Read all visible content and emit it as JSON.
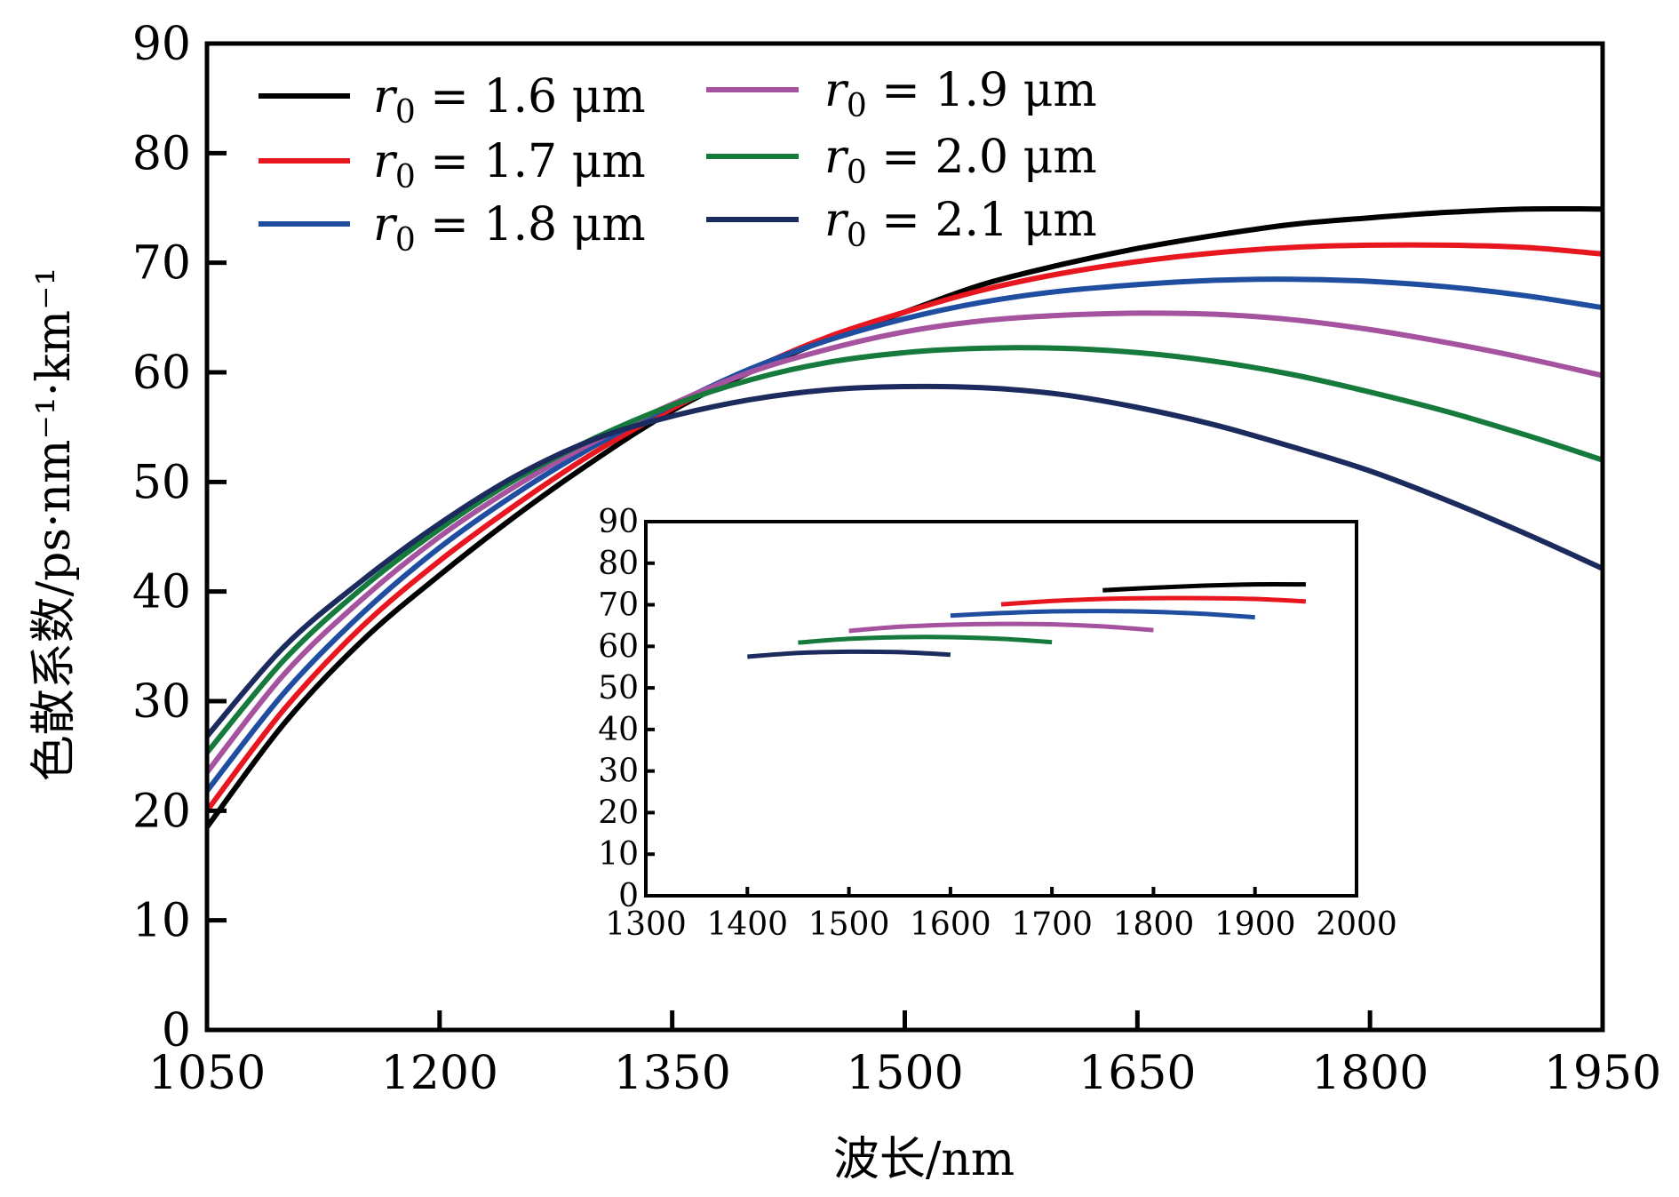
{
  "chart_data": [
    {
      "type": "line",
      "title": "",
      "xlabel": "波长/nm",
      "ylabel": "色散系数/ps·nm⁻¹·km⁻¹",
      "xlim": [
        1050,
        1950
      ],
      "ylim": [
        0,
        90
      ],
      "xticks": [
        "1050",
        "1200",
        "1350",
        "1500",
        "1650",
        "1800",
        "1950"
      ],
      "yticks": [
        "0",
        "10",
        "20",
        "30",
        "40",
        "50",
        "60",
        "70",
        "80",
        "90"
      ],
      "grid": false,
      "legend_position": "top-left",
      "x": [
        1050,
        1100,
        1150,
        1200,
        1250,
        1300,
        1350,
        1400,
        1450,
        1500,
        1550,
        1600,
        1650,
        1700,
        1750,
        1800,
        1850,
        1900,
        1950
      ],
      "series": [
        {
          "name": "r0 = 1.6 μm",
          "legend_prefix": "r",
          "legend_sub": "0",
          "legend_suffix": " = 1.6 μm",
          "color": "#000000",
          "values": [
            18.5,
            28.0,
            35.5,
            41.5,
            47.0,
            52.0,
            56.5,
            60.0,
            63.0,
            65.5,
            68.0,
            69.8,
            71.3,
            72.5,
            73.5,
            74.1,
            74.6,
            74.9,
            74.9
          ]
        },
        {
          "name": "r0 = 1.7 μm",
          "legend_prefix": "r",
          "legend_sub": "0",
          "legend_suffix": " = 1.7 μm",
          "color": "#e8161e",
          "values": [
            20.0,
            29.3,
            36.8,
            42.8,
            48.0,
            52.7,
            56.7,
            60.2,
            63.2,
            65.5,
            67.5,
            69.0,
            70.1,
            70.9,
            71.4,
            71.6,
            71.6,
            71.4,
            70.8
          ]
        },
        {
          "name": "r0 = 1.8 μm",
          "legend_prefix": "r",
          "legend_sub": "0",
          "legend_suffix": " = 1.8 μm",
          "color": "#1f4ea1",
          "values": [
            21.8,
            30.8,
            38.0,
            44.0,
            49.0,
            53.3,
            57.0,
            60.3,
            62.9,
            64.9,
            66.4,
            67.4,
            68.0,
            68.4,
            68.5,
            68.3,
            67.8,
            67.0,
            65.9
          ]
        },
        {
          "name": "r0 = 1.9 μm",
          "legend_prefix": "r",
          "legend_sub": "0",
          "legend_suffix": " = 1.9 μm",
          "color": "#a6539f",
          "values": [
            23.5,
            32.5,
            39.3,
            45.0,
            49.7,
            53.7,
            57.1,
            60.0,
            62.1,
            63.7,
            64.7,
            65.2,
            65.4,
            65.3,
            64.8,
            63.9,
            62.7,
            61.3,
            59.7
          ]
        },
        {
          "name": "r0 = 2.0 μm",
          "legend_prefix": "r",
          "legend_sub": "0",
          "legend_suffix": " = 2.0 μm",
          "color": "#167a3c",
          "values": [
            25.3,
            33.8,
            40.3,
            45.7,
            50.3,
            54.0,
            57.0,
            59.3,
            60.9,
            61.8,
            62.2,
            62.2,
            61.8,
            61.0,
            59.8,
            58.2,
            56.4,
            54.3,
            52.0
          ]
        },
        {
          "name": "r0 = 2.1 μm",
          "legend_prefix": "r",
          "legend_sub": "0",
          "legend_suffix": " = 2.1 μm",
          "color": "#1c2b5e",
          "values": [
            26.8,
            35.0,
            41.0,
            46.2,
            50.6,
            53.9,
            56.0,
            57.5,
            58.4,
            58.7,
            58.6,
            58.0,
            56.8,
            55.2,
            53.2,
            51.0,
            48.3,
            45.3,
            42.1
          ]
        }
      ]
    },
    {
      "type": "line",
      "title": "inset",
      "xlabel": "",
      "ylabel": "",
      "xlim": [
        1300,
        2000
      ],
      "ylim": [
        0,
        90
      ],
      "xticks": [
        "1300",
        "1400",
        "1500",
        "1600",
        "1700",
        "1800",
        "1900",
        "2000"
      ],
      "yticks": [
        "0",
        "10",
        "20",
        "30",
        "40",
        "50",
        "60",
        "70",
        "80",
        "90"
      ],
      "grid": false,
      "series": [
        {
          "name": "r0 = 1.6 μm",
          "color": "#000000",
          "x": [
            1750,
            1800,
            1850,
            1900,
            1950
          ],
          "values": [
            73.5,
            74.1,
            74.6,
            74.9,
            74.9
          ]
        },
        {
          "name": "r0 = 1.7 μm",
          "color": "#e8161e",
          "x": [
            1650,
            1700,
            1750,
            1800,
            1850,
            1900,
            1950
          ],
          "values": [
            70.1,
            70.9,
            71.4,
            71.6,
            71.6,
            71.4,
            70.8
          ]
        },
        {
          "name": "r0 = 1.8 μm",
          "color": "#1f4ea1",
          "x": [
            1600,
            1650,
            1700,
            1750,
            1800,
            1850,
            1900
          ],
          "values": [
            67.4,
            68.0,
            68.4,
            68.5,
            68.3,
            67.8,
            67.0
          ]
        },
        {
          "name": "r0 = 1.9 μm",
          "color": "#a6539f",
          "x": [
            1500,
            1550,
            1600,
            1650,
            1700,
            1750,
            1800
          ],
          "values": [
            63.7,
            64.7,
            65.2,
            65.4,
            65.3,
            64.8,
            63.9
          ]
        },
        {
          "name": "r0 = 2.0 μm",
          "color": "#167a3c",
          "x": [
            1450,
            1500,
            1550,
            1600,
            1650,
            1700
          ],
          "values": [
            60.9,
            61.8,
            62.2,
            62.2,
            61.8,
            61.0
          ]
        },
        {
          "name": "r0 = 2.1 μm",
          "color": "#1c2b5e",
          "x": [
            1400,
            1450,
            1500,
            1550,
            1600
          ],
          "values": [
            57.5,
            58.4,
            58.7,
            58.6,
            58.0
          ]
        }
      ]
    }
  ]
}
